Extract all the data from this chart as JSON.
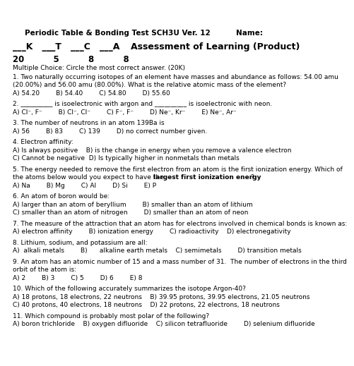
{
  "bg": "#ffffff",
  "fg": "#000000",
  "title": "Periodic Table & Bonding Test SCH3U Ver. 12          Name:",
  "hdr_left": "___K   ___T   ___C   ___A",
  "hdr_right": "Assessment of Learning (Product)",
  "scores": "20          5          8          8",
  "mc": "Multiple Choice: Circle the most correct answer. (20K)",
  "lines": [
    [
      "1. Two naturally occurring isotopes of an element have masses and abundance as follows: 54.00 amu",
      0,
      0
    ],
    [
      "(20.00%) and 56.00 amu (80.00%). What is the relative atomic mass of the element?",
      0,
      0
    ],
    [
      "A) 54.20        B) 54.40        C) 54.80        D) 55.60",
      0,
      0
    ],
    [
      "",
      1,
      0
    ],
    [
      "2. __________ is isoelectronic with argon and __________ is isoelectronic with neon.",
      0,
      0
    ],
    [
      "A) Cl⁻, F⁻        B) Cl⁻, Cl⁻        C) F⁻, F⁻        D) Ne⁻, Kr⁻        E) Ne⁻, Ar⁻",
      0,
      0
    ],
    [
      "",
      1,
      0
    ],
    [
      "3. The number of neutrons in an atom 139Ba is",
      0,
      0
    ],
    [
      "A) 56        B) 83        C) 139        D) no correct number given.",
      0,
      0
    ],
    [
      "",
      1,
      0
    ],
    [
      "4. Electron affinity:",
      0,
      0
    ],
    [
      "A) Is always positive    B) is the change in energy when you remove a valence electron",
      0,
      0
    ],
    [
      "C) Cannot be negative  D) Is typically higher in nonmetals than metals",
      0,
      0
    ],
    [
      "",
      1,
      0
    ],
    [
      "5. The energy needed to remove the first electron from an atom is the first ionization energy. Which of",
      0,
      0
    ],
    [
      "the atoms below would you expect to have the |largest first ionization energy|?",
      0,
      1
    ],
    [
      "A) Na        B) Mg        C) Al        D) Si        E) P",
      0,
      0
    ],
    [
      "",
      1,
      0
    ],
    [
      "6. An atom of boron would be:",
      0,
      0
    ],
    [
      "A) larger than an atom of beryllium        B) smaller than an atom of lithium",
      0,
      0
    ],
    [
      "C) smaller than an atom of nitrogen        D) smaller than an atom of neon",
      0,
      0
    ],
    [
      "",
      1,
      0
    ],
    [
      "7. The measure of the attraction that an atom has for electrons involved in chemical bonds is known as:",
      0,
      0
    ],
    [
      "A) electron affinity        B) ionization energy        C) radioactivity    D) electronegativity",
      0,
      0
    ],
    [
      "",
      1,
      0
    ],
    [
      "8. Lithium, sodium, and potassium are all:",
      0,
      0
    ],
    [
      "A)  alkali metals        B)      alkaline earth metals    C) semimetals        D) transition metals",
      0,
      0
    ],
    [
      "",
      1,
      0
    ],
    [
      "9. An atom has an atomic number of 15 and a mass number of 31.  The number of electrons in the third",
      0,
      0
    ],
    [
      "orbit of the atom is:",
      0,
      0
    ],
    [
      "A) 2        B) 3        C) 5        D) 6        E) 8",
      0,
      0
    ],
    [
      "",
      1,
      0
    ],
    [
      "10. Which of the following accurately summarizes the isotope Argon-40?",
      0,
      0
    ],
    [
      "A) 18 protons, 18 electrons, 22 neutrons    B) 39.95 protons, 39.95 electrons, 21.05 neutrons",
      0,
      0
    ],
    [
      "C) 40 protons, 40 electrons, 18 neutrons    D) 22 protons, 22 electrons, 18 neutrons",
      0,
      0
    ],
    [
      "",
      1,
      0
    ],
    [
      "11. Which compound is probably most polar of the following?",
      0,
      0
    ],
    [
      "A) boron trichloride    B) oxygen difluoride    C) silicon tetrafluoride        D) selenium difluoride",
      0,
      0
    ]
  ],
  "title_fs": 7.5,
  "hdr_fs": 9.0,
  "score_fs": 8.5,
  "body_fs": 6.5,
  "mc_fs": 6.5
}
